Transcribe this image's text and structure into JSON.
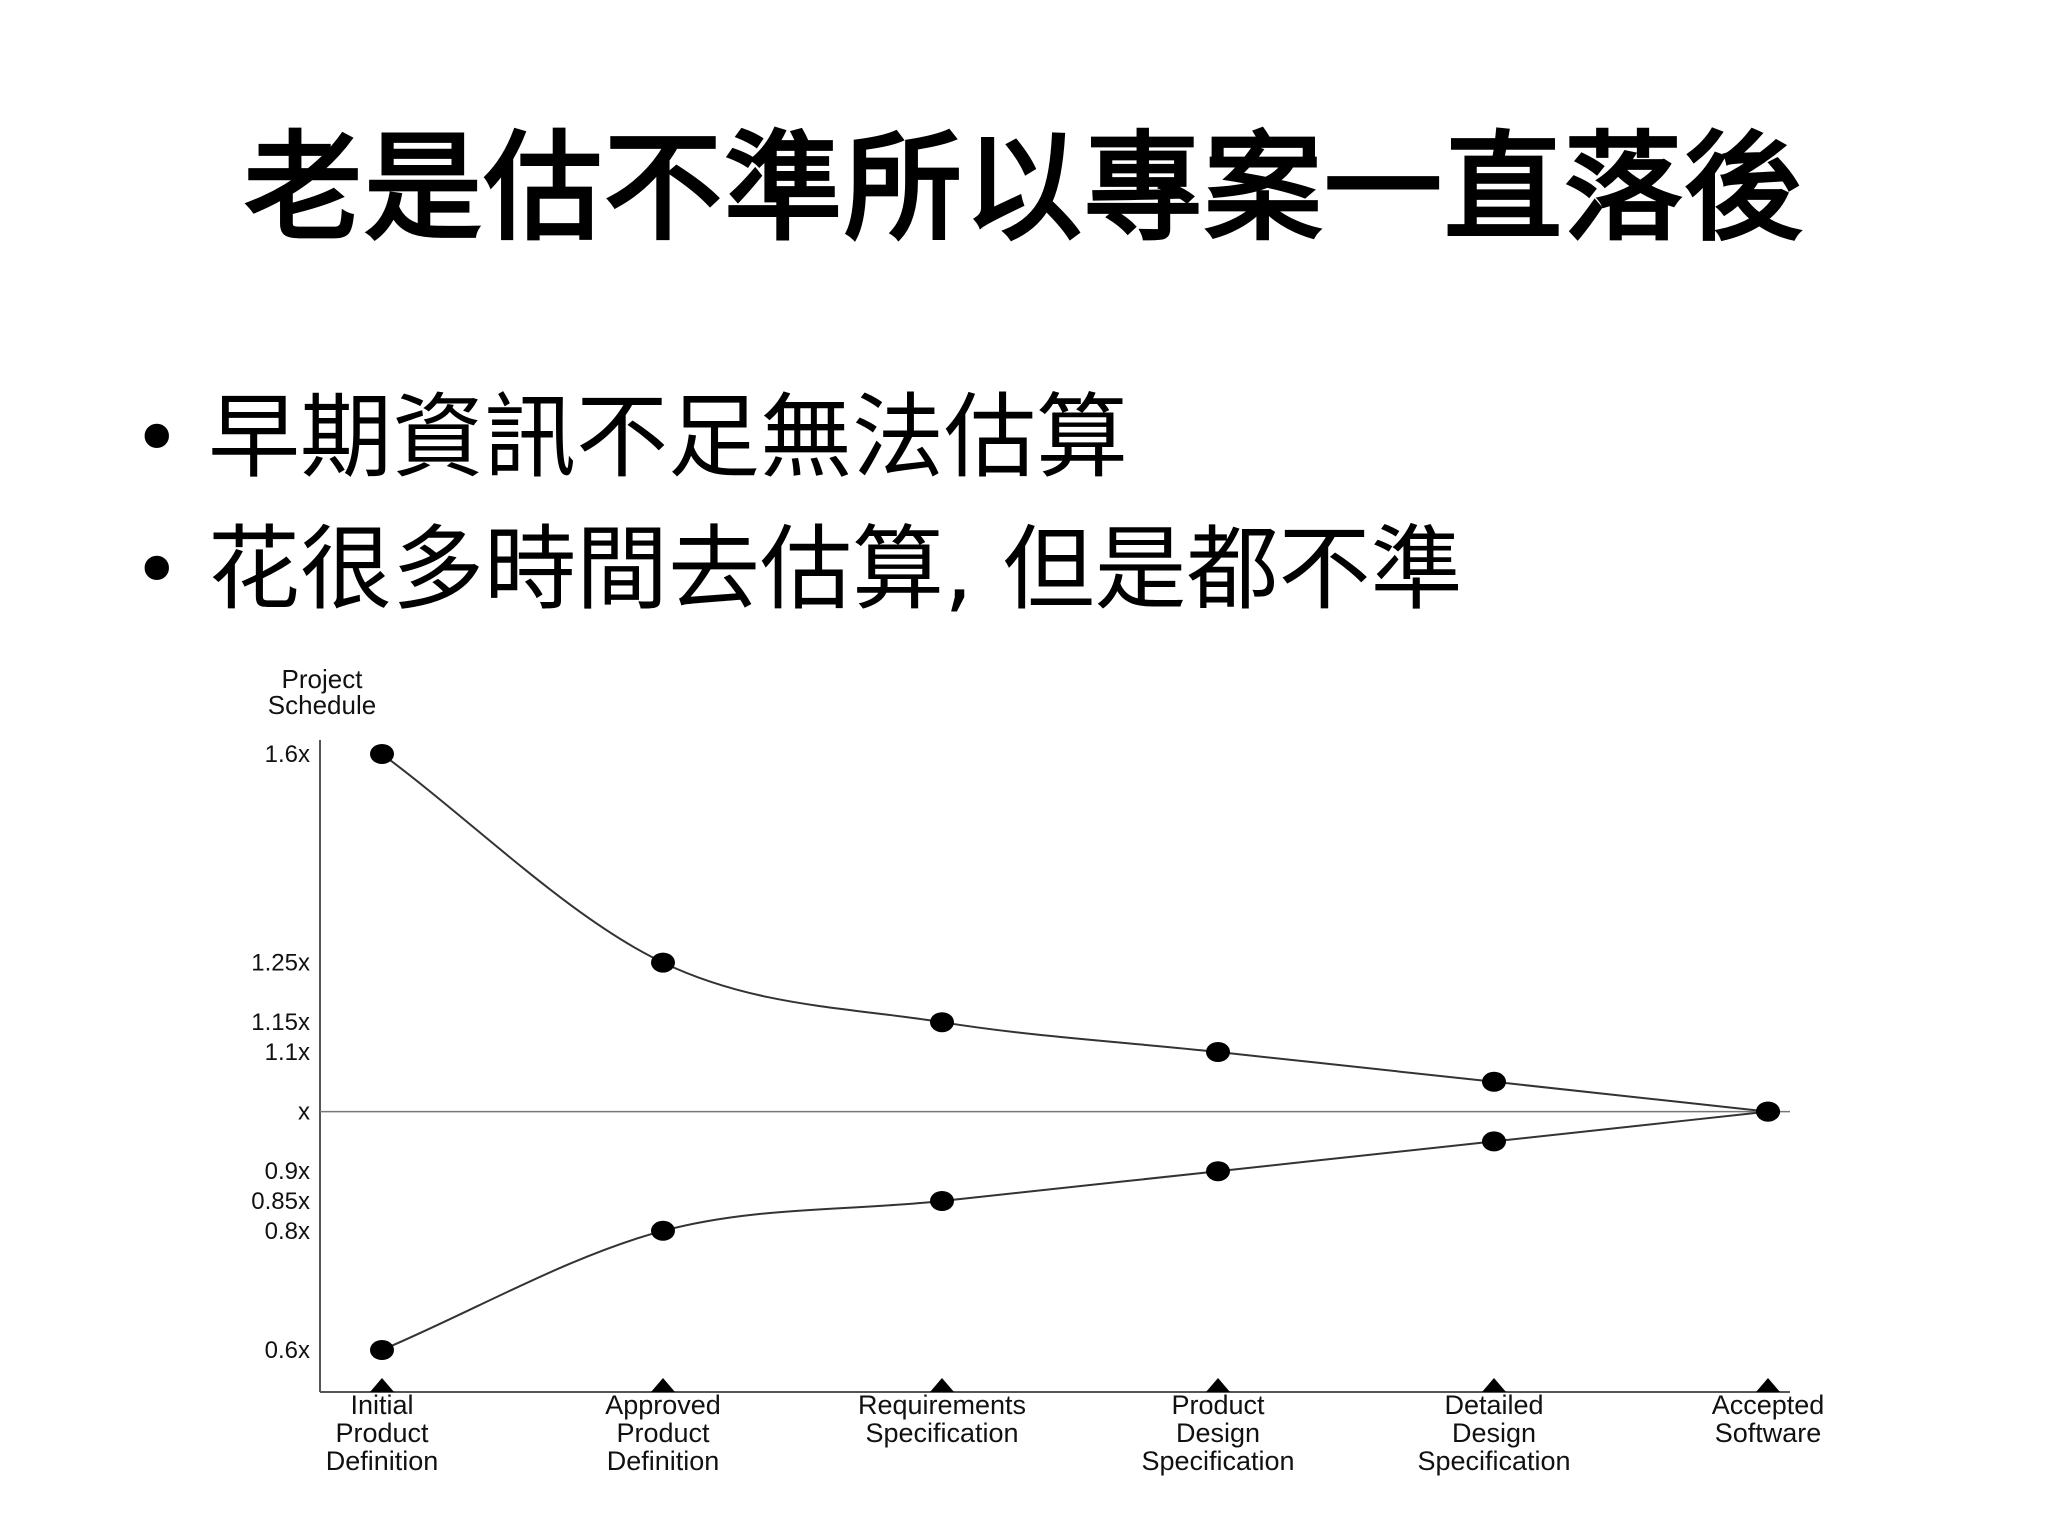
{
  "slide": {
    "title": "老是估不準所以專案一直落後",
    "bullets": [
      "早期資訊不足無法估算",
      "花很多時間去估算, 但是都不準"
    ]
  },
  "colors": {
    "ink": "#000000",
    "background": "#ffffff"
  },
  "chart_data": {
    "type": "line",
    "title": "",
    "ylabel": [
      "Project",
      "Schedule"
    ],
    "y_ticks": [
      {
        "value": 1.6,
        "label": "1.6x"
      },
      {
        "value": 1.25,
        "label": "1.25x"
      },
      {
        "value": 1.15,
        "label": "1.15x"
      },
      {
        "value": 1.1,
        "label": "1.1x"
      },
      {
        "value": 1.0,
        "label": "x"
      },
      {
        "value": 0.9,
        "label": "0.9x"
      },
      {
        "value": 0.85,
        "label": "0.85x"
      },
      {
        "value": 0.8,
        "label": "0.8x"
      },
      {
        "value": 0.6,
        "label": "0.6x"
      }
    ],
    "categories": [
      [
        "Initial",
        "Product",
        "Definition"
      ],
      [
        "Approved",
        "Product",
        "Definition"
      ],
      [
        "Requirements",
        "Specification"
      ],
      [
        "Product",
        "Design",
        "Specification"
      ],
      [
        "Detailed",
        "Design",
        "Specification"
      ],
      [
        "Accepted",
        "Software"
      ]
    ],
    "series": [
      {
        "values": [
          1.6,
          1.25,
          1.15,
          1.1,
          1.05,
          1.0
        ]
      },
      {
        "values": [
          0.6,
          0.8,
          0.85,
          0.9,
          0.95,
          1.0
        ]
      }
    ],
    "reference_line": 1.0,
    "grid": false,
    "legend": "none"
  }
}
